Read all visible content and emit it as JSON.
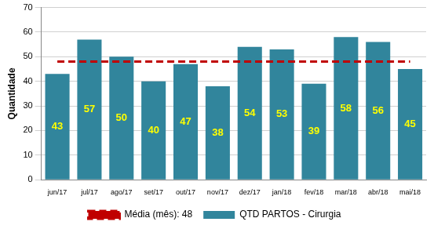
{
  "chart_data": {
    "type": "bar",
    "y_label": "Quantidade",
    "categories": [
      "jun/17",
      "jul/17",
      "ago/17",
      "set/17",
      "out/17",
      "nov/17",
      "dez/17",
      "jan/18",
      "fev/18",
      "mar/18",
      "abr/18",
      "mai/18"
    ],
    "series": [
      {
        "name": "QTD PARTOS - Cirurgia",
        "type": "bar",
        "color": "#31859c",
        "data_labels": true,
        "values": [
          43,
          57,
          50,
          40,
          47,
          38,
          54,
          53,
          39,
          58,
          56,
          45
        ]
      },
      {
        "name": "Média (mês): 48",
        "type": "line",
        "color": "#c00000",
        "line_style": "dashed",
        "values": [
          48,
          48,
          48,
          48,
          48,
          48,
          48,
          48,
          48,
          48,
          48,
          48
        ]
      }
    ],
    "ylim": [
      0,
      70
    ],
    "yticks": [
      0,
      10,
      20,
      30,
      40,
      50,
      60,
      70
    ],
    "grid": true,
    "legend": "bottom"
  }
}
